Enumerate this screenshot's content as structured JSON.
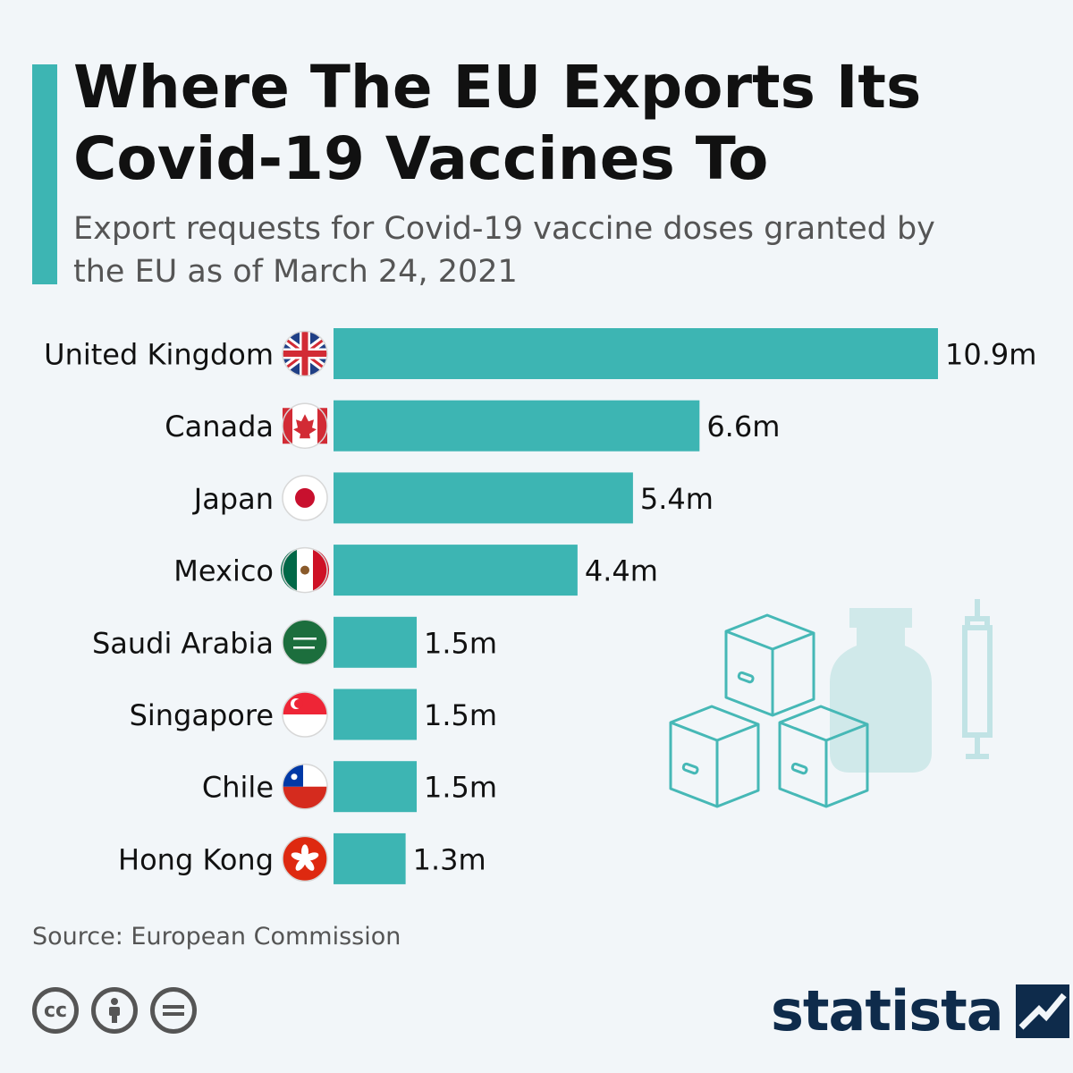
{
  "title": "Where The EU Exports Its Covid-19 Vaccines To",
  "subtitle": "Export requests for Covid-19 vaccine doses granted by the EU as of March 24, 2021",
  "source": "Source: European Commission",
  "brand": "statista",
  "license_icons": [
    "cc-icon",
    "attribution-icon",
    "no-derivatives-icon"
  ],
  "colors": {
    "bar": "#3db5b3",
    "accent": "#3db5b3",
    "illustration": "#3db5b3",
    "text": "#111111"
  },
  "chart_data": {
    "type": "bar",
    "orientation": "horizontal",
    "title": "Where The EU Exports Its Covid-19 Vaccines To",
    "categories": [
      "United Kingdom",
      "Canada",
      "Japan",
      "Mexico",
      "Saudi Arabia",
      "Singapore",
      "Chile",
      "Hong Kong"
    ],
    "values": [
      10.9,
      6.6,
      5.4,
      4.4,
      1.5,
      1.5,
      1.5,
      1.3
    ],
    "labels": [
      "10.9m",
      "6.6m",
      "5.4m",
      "4.4m",
      "1.5m",
      "1.5m",
      "1.5m",
      "1.3m"
    ],
    "flags": [
      "uk-flag-icon",
      "canada-flag-icon",
      "japan-flag-icon",
      "mexico-flag-icon",
      "saudi-arabia-flag-icon",
      "singapore-flag-icon",
      "chile-flag-icon",
      "hong-kong-flag-icon"
    ],
    "unit": "million doses",
    "xlim": [
      0,
      10.9
    ],
    "grid": false
  }
}
